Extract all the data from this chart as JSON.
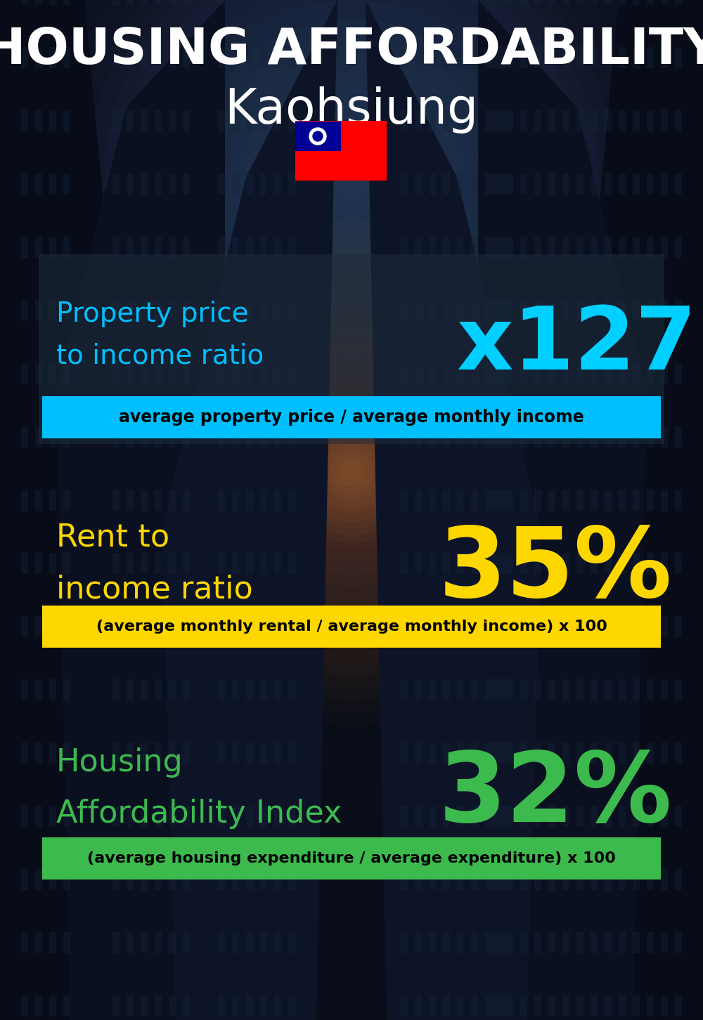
{
  "title_line1": "HOUSING AFFORDABILITY",
  "title_line2": "Kaohsiung",
  "flag_emoji": "🇹🇼",
  "section1_label": "Property price\nto income ratio",
  "section1_value": "x127",
  "section1_label_color": "#00BFFF",
  "section1_value_color": "#00CFFF",
  "section1_formula": "average property price / average monthly income",
  "section1_formula_bg": "#00BFFF",
  "section1_panel_color": "#1a2535",
  "section2_label": "Rent to\nincome ratio",
  "section2_value": "35%",
  "section2_label_color": "#FFD700",
  "section2_value_color": "#FFD700",
  "section2_formula": "(average monthly rental / average monthly income) x 100",
  "section2_formula_bg": "#FFD700",
  "section3_label": "Housing\nAffordability Index",
  "section3_value": "32%",
  "section3_label_color": "#3DBA4E",
  "section3_value_color": "#3DBA4E",
  "section3_formula": "(average housing expenditure / average expenditure) x 100",
  "section3_formula_bg": "#3DBA4E",
  "bg_color": "#080d18",
  "bg_mid_color": "#0d1520",
  "title_color": "#FFFFFF",
  "formula_text_color": "#000000",
  "building_color_dark": "#0a1020",
  "building_color_mid": "#0f1828",
  "sky_color": "#1a2840",
  "glow_color": "#c87020"
}
